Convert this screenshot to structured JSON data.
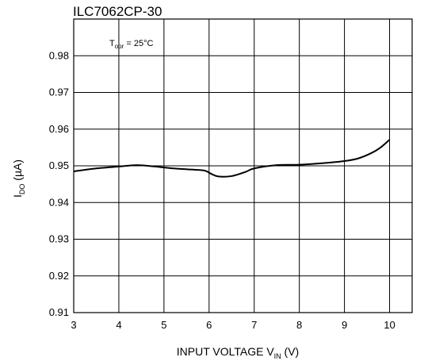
{
  "chart_data": {
    "type": "line",
    "title": "ILC7062CP-30",
    "annotation": {
      "main": "T",
      "sub": "opr",
      "rest": " = 25°C"
    },
    "xlabel": {
      "main": "INPUT VOLTAGE V",
      "sub": "IN",
      "rest": " (V)"
    },
    "ylabel": {
      "main": "I",
      "sub": "DO",
      "rest": " (µA)"
    },
    "xlim": [
      3,
      10.5
    ],
    "ylim": [
      0.91,
      0.99
    ],
    "x_ticks": [
      3,
      4,
      5,
      6,
      7,
      8,
      9,
      10
    ],
    "x_tick_labels": [
      "3",
      "4",
      "5",
      "6",
      "7",
      "8",
      "9",
      "10"
    ],
    "y_ticks": [
      0.91,
      0.92,
      0.93,
      0.94,
      0.95,
      0.96,
      0.97,
      0.98
    ],
    "y_tick_labels": [
      "0.91",
      "0.92",
      "0.93",
      "0.94",
      "0.95",
      "0.96",
      "0.97",
      "0.98"
    ],
    "grid": true,
    "series": [
      {
        "x": [
          3.0,
          3.5,
          4.0,
          4.4,
          4.8,
          5.2,
          5.6,
          5.9,
          6.05,
          6.2,
          6.5,
          6.8,
          7.0,
          7.5,
          8.0,
          8.5,
          9.0,
          9.3,
          9.6,
          9.8,
          10.0
        ],
        "y": [
          0.9485,
          0.9493,
          0.9498,
          0.9502,
          0.9498,
          0.9493,
          0.949,
          0.9487,
          0.9478,
          0.9471,
          0.9472,
          0.9483,
          0.9493,
          0.9502,
          0.9503,
          0.9507,
          0.9513,
          0.952,
          0.9535,
          0.955,
          0.9571
        ]
      }
    ]
  }
}
